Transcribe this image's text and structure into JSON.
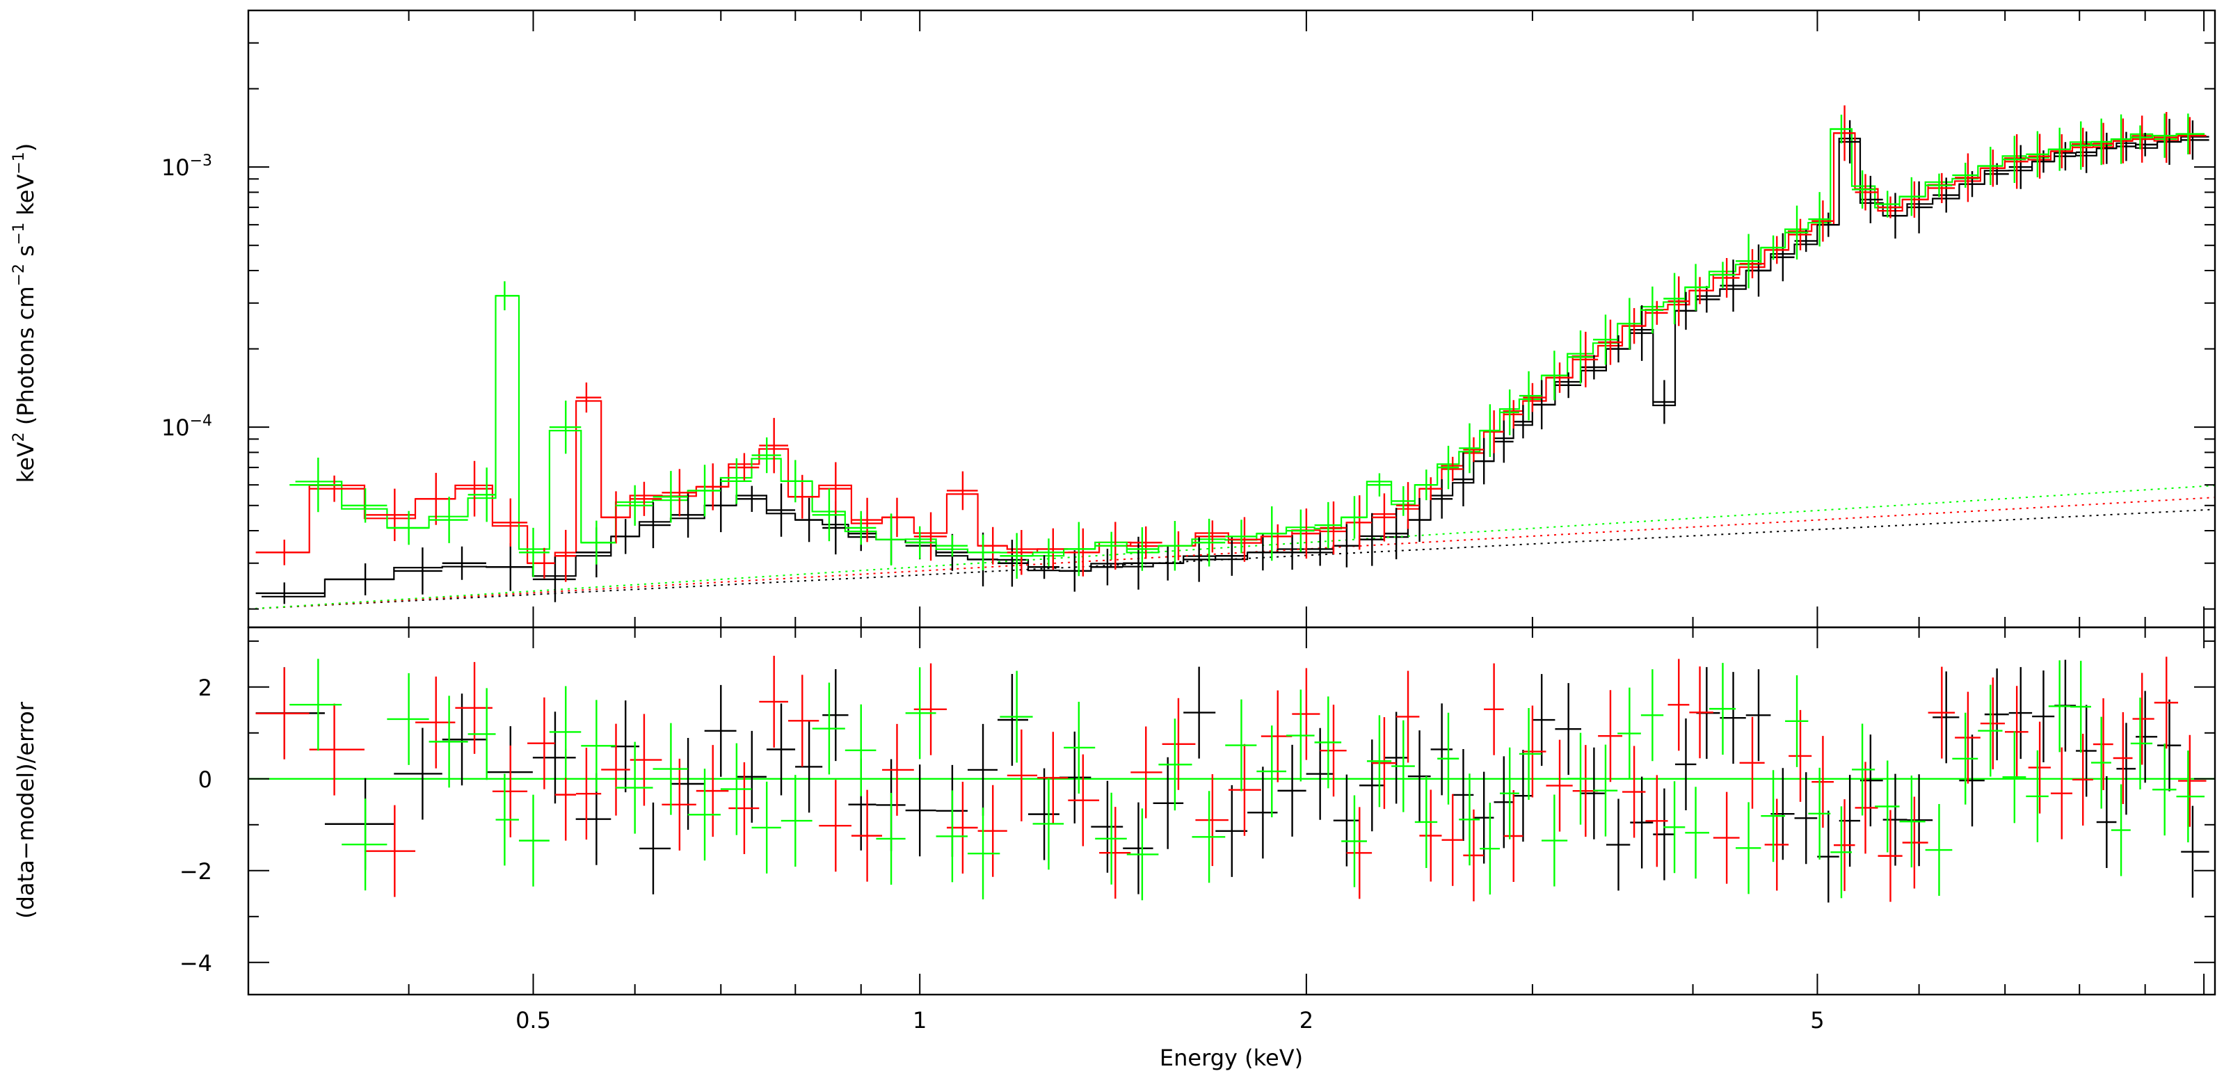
{
  "chart_data": [
    {
      "panel": "spectrum",
      "type": "scatter",
      "x_scale": "log",
      "y_scale": "log",
      "xlim": [
        0.3,
        10.2
      ],
      "ylim": [
        1.7e-05,
        0.004
      ],
      "ylabel_base": "keV",
      "ylabel_sup": "2",
      "ylabel_text": " (Photons cm",
      "ylabel_sup2": "−2",
      "ylabel_text2": " s",
      "ylabel_sup3": "−1",
      "ylabel_text3": " keV",
      "ylabel_sup4": "−1",
      "ylabel_close": ")",
      "ytick_labels": [
        {
          "value": 0.001,
          "base": "10",
          "exp": "−3"
        },
        {
          "value": 0.0001,
          "base": "10",
          "exp": "−4"
        }
      ],
      "grid": false,
      "series": [
        {
          "color": "#000000",
          "points": [
            [
              0.32,
              2.3e-05
            ],
            [
              0.37,
              2.6e-05
            ],
            [
              0.41,
              2.8e-05
            ],
            [
              0.44,
              3e-05
            ],
            [
              0.48,
              2.9e-05
            ],
            [
              0.52,
              2.6e-05
            ],
            [
              0.56,
              3.3e-05
            ],
            [
              0.59,
              3.8e-05
            ],
            [
              0.62,
              4.2e-05
            ],
            [
              0.66,
              4.6e-05
            ],
            [
              0.7,
              5e-05
            ],
            [
              0.74,
              5.3e-05
            ],
            [
              0.78,
              4.8e-05
            ],
            [
              0.82,
              4.4e-05
            ],
            [
              0.86,
              4.1e-05
            ],
            [
              0.9,
              3.9e-05
            ],
            [
              0.95,
              3.7e-05
            ],
            [
              1.0,
              3.5e-05
            ],
            [
              1.06,
              3.3e-05
            ],
            [
              1.12,
              3.1e-05
            ],
            [
              1.18,
              3e-05
            ],
            [
              1.25,
              2.9e-05
            ],
            [
              1.32,
              2.8e-05
            ],
            [
              1.4,
              2.9e-05
            ],
            [
              1.48,
              3e-05
            ],
            [
              1.56,
              3e-05
            ],
            [
              1.65,
              3.1e-05
            ],
            [
              1.75,
              3.2e-05
            ],
            [
              1.85,
              3.3e-05
            ],
            [
              1.95,
              3.3e-05
            ],
            [
              2.05,
              3.4e-05
            ],
            [
              2.15,
              3.5e-05
            ],
            [
              2.25,
              3.7e-05
            ],
            [
              2.35,
              3.9e-05
            ],
            [
              2.45,
              4.4e-05
            ],
            [
              2.55,
              5.3e-05
            ],
            [
              2.65,
              6.3e-05
            ],
            [
              2.75,
              7.4e-05
            ],
            [
              2.85,
              8.8e-05
            ],
            [
              2.95,
              0.000105
            ],
            [
              3.05,
              0.000122
            ],
            [
              3.2,
              0.000145
            ],
            [
              3.35,
              0.00017
            ],
            [
              3.5,
              0.0002
            ],
            [
              3.65,
              0.00023
            ],
            [
              3.8,
              0.000125
            ],
            [
              3.95,
              0.00028
            ],
            [
              4.1,
              0.00031
            ],
            [
              4.3,
              0.00035
            ],
            [
              4.5,
              0.0004
            ],
            [
              4.7,
              0.00045
            ],
            [
              4.9,
              0.00052
            ],
            [
              5.1,
              0.0006
            ],
            [
              5.3,
              0.00125
            ],
            [
              5.5,
              0.00075
            ],
            [
              5.75,
              0.00065
            ],
            [
              6.0,
              0.0007
            ],
            [
              6.3,
              0.00078
            ],
            [
              6.6,
              0.00086
            ],
            [
              6.9,
              0.00094
            ],
            [
              7.2,
              0.001
            ],
            [
              7.5,
              0.00105
            ],
            [
              7.8,
              0.0011
            ],
            [
              8.1,
              0.00114
            ],
            [
              8.4,
              0.00118
            ],
            [
              8.7,
              0.0012
            ],
            [
              9.0,
              0.00122
            ],
            [
              9.4,
              0.00125
            ],
            [
              9.8,
              0.00127
            ]
          ]
        },
        {
          "color": "#ff0000",
          "points": [
            [
              0.32,
              3.3e-05
            ],
            [
              0.35,
              5.8e-05
            ],
            [
              0.39,
              4.6e-05
            ],
            [
              0.42,
              5.3e-05
            ],
            [
              0.45,
              5.8e-05
            ],
            [
              0.48,
              4.3e-05
            ],
            [
              0.51,
              3e-05
            ],
            [
              0.53,
              3.2e-05
            ],
            [
              0.55,
              0.00013
            ],
            [
              0.58,
              4.5e-05
            ],
            [
              0.61,
              5.3e-05
            ],
            [
              0.65,
              5.6e-05
            ],
            [
              0.69,
              5.9e-05
            ],
            [
              0.73,
              7e-05
            ],
            [
              0.77,
              8.5e-05
            ],
            [
              0.81,
              5.4e-05
            ],
            [
              0.86,
              5.8e-05
            ],
            [
              0.91,
              4.4e-05
            ],
            [
              0.96,
              4.5e-05
            ],
            [
              1.02,
              3.8e-05
            ],
            [
              1.08,
              5.7e-05
            ],
            [
              1.14,
              3.5e-05
            ],
            [
              1.2,
              3.3e-05
            ],
            [
              1.27,
              3.4e-05
            ],
            [
              1.34,
              3.3e-05
            ],
            [
              1.42,
              3.5e-05
            ],
            [
              1.5,
              3.6e-05
            ],
            [
              1.59,
              3.5e-05
            ],
            [
              1.69,
              3.8e-05
            ],
            [
              1.79,
              3.7e-05
            ],
            [
              1.9,
              3.8e-05
            ],
            [
              2.0,
              3.9e-05
            ],
            [
              2.1,
              4.1e-05
            ],
            [
              2.2,
              4.3e-05
            ],
            [
              2.3,
              4.5e-05
            ],
            [
              2.4,
              5e-05
            ],
            [
              2.5,
              5.8e-05
            ],
            [
              2.6,
              6.9e-05
            ],
            [
              2.7,
              8.2e-05
            ],
            [
              2.8,
              9.6e-05
            ],
            [
              2.9,
              0.000112
            ],
            [
              3.0,
              0.00013
            ],
            [
              3.15,
              0.000155
            ],
            [
              3.3,
              0.000182
            ],
            [
              3.45,
              0.000212
            ],
            [
              3.6,
              0.000245
            ],
            [
              3.75,
              0.000275
            ],
            [
              3.9,
              0.000305
            ],
            [
              4.05,
              0.000335
            ],
            [
              4.25,
              0.000375
            ],
            [
              4.45,
              0.000425
            ],
            [
              4.65,
              0.00048
            ],
            [
              4.85,
              0.00055
            ],
            [
              5.05,
              0.00062
            ],
            [
              5.25,
              0.00135
            ],
            [
              5.45,
              0.0008
            ],
            [
              5.7,
              0.0007
            ],
            [
              5.95,
              0.00075
            ],
            [
              6.25,
              0.00083
            ],
            [
              6.55,
              0.00091
            ],
            [
              6.85,
              0.00099
            ],
            [
              7.15,
              0.00105
            ],
            [
              7.45,
              0.0011
            ],
            [
              7.75,
              0.00115
            ],
            [
              8.05,
              0.00119
            ],
            [
              8.35,
              0.00123
            ],
            [
              8.65,
              0.00126
            ],
            [
              8.95,
              0.00128
            ],
            [
              9.35,
              0.0013
            ],
            [
              9.75,
              0.00132
            ]
          ]
        },
        {
          "color": "#00ff00",
          "points": [
            [
              0.34,
              6e-05
            ],
            [
              0.37,
              5e-05
            ],
            [
              0.4,
              4.1e-05
            ],
            [
              0.43,
              4.4e-05
            ],
            [
              0.46,
              5.5e-05
            ],
            [
              0.475,
              0.00032
            ],
            [
              0.5,
              3.3e-05
            ],
            [
              0.53,
              0.0001
            ],
            [
              0.56,
              3.6e-05
            ],
            [
              0.6,
              5e-05
            ],
            [
              0.64,
              5.4e-05
            ],
            [
              0.68,
              5.7e-05
            ],
            [
              0.72,
              6.2e-05
            ],
            [
              0.76,
              7.8e-05
            ],
            [
              0.8,
              6.2e-05
            ],
            [
              0.85,
              4.6e-05
            ],
            [
              0.9,
              4.1e-05
            ],
            [
              0.95,
              3.7e-05
            ],
            [
              1.0,
              3.6e-05
            ],
            [
              1.06,
              3.5e-05
            ],
            [
              1.12,
              3.3e-05
            ],
            [
              1.19,
              3.2e-05
            ],
            [
              1.26,
              3.3e-05
            ],
            [
              1.33,
              3.4e-05
            ],
            [
              1.41,
              3.5e-05
            ],
            [
              1.49,
              3.4e-05
            ],
            [
              1.58,
              3.5e-05
            ],
            [
              1.68,
              3.6e-05
            ],
            [
              1.78,
              3.8e-05
            ],
            [
              1.88,
              3.9e-05
            ],
            [
              1.98,
              4e-05
            ],
            [
              2.08,
              4.2e-05
            ],
            [
              2.18,
              4.5e-05
            ],
            [
              2.28,
              6e-05
            ],
            [
              2.38,
              5.2e-05
            ],
            [
              2.48,
              6e-05
            ],
            [
              2.58,
              7e-05
            ],
            [
              2.68,
              8.3e-05
            ],
            [
              2.78,
              9.7e-05
            ],
            [
              2.88,
              0.000114
            ],
            [
              2.98,
              0.000132
            ],
            [
              3.12,
              0.000158
            ],
            [
              3.27,
              0.000186
            ],
            [
              3.42,
              0.000217
            ],
            [
              3.57,
              0.00025
            ],
            [
              3.72,
              0.000282
            ],
            [
              3.87,
              0.000312
            ],
            [
              4.02,
              0.000345
            ],
            [
              4.22,
              0.000385
            ],
            [
              4.42,
              0.000435
            ],
            [
              4.62,
              0.00049
            ],
            [
              4.82,
              0.00056
            ],
            [
              5.02,
              0.00063
            ],
            [
              5.22,
              0.0014
            ],
            [
              5.42,
              0.00082
            ],
            [
              5.67,
              0.00072
            ],
            [
              5.92,
              0.00077
            ],
            [
              6.22,
              0.00085
            ],
            [
              6.52,
              0.00093
            ],
            [
              6.82,
              0.00101
            ],
            [
              7.12,
              0.00107
            ],
            [
              7.42,
              0.00112
            ],
            [
              7.72,
              0.00117
            ],
            [
              8.02,
              0.00121
            ],
            [
              8.32,
              0.00125
            ],
            [
              8.62,
              0.00128
            ],
            [
              8.92,
              0.0013
            ],
            [
              9.32,
              0.00132
            ],
            [
              9.72,
              0.00134
            ]
          ]
        }
      ]
    },
    {
      "panel": "residuals",
      "type": "scatter",
      "x_scale": "log",
      "y_scale": "linear",
      "xlim": [
        0.3,
        10.2
      ],
      "ylim": [
        -4.7,
        3.3
      ],
      "xlabel": "Energy (keV)",
      "ylabel": "(data−model)/error",
      "xtick_labels": [
        {
          "value": 0.5,
          "label": "0.5"
        },
        {
          "value": 1,
          "label": "1"
        },
        {
          "value": 2,
          "label": "2"
        },
        {
          "value": 5,
          "label": "5"
        }
      ],
      "ytick_labels": [
        {
          "value": 2,
          "label": "2"
        },
        {
          "value": 0,
          "label": "0"
        },
        {
          "value": -2,
          "label": "−2"
        },
        {
          "value": -4,
          "label": "−4"
        }
      ],
      "zero_line_color": "#00ff00",
      "grid": false
    }
  ]
}
